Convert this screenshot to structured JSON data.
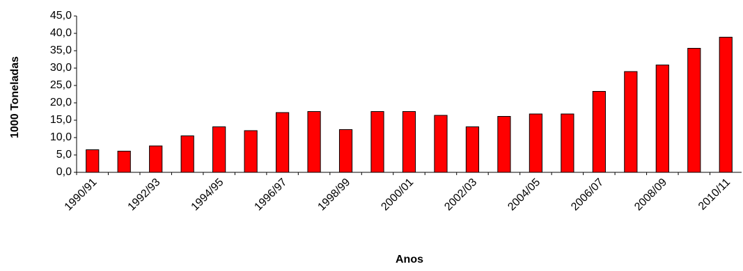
{
  "chart_data": {
    "type": "bar",
    "y_label": "1000 Toneladas",
    "x_label": "Anos",
    "categories": [
      "1990/91",
      null,
      "1992/93",
      null,
      "1994/95",
      null,
      "1996/97",
      null,
      "1998/99",
      null,
      "2000/01",
      null,
      "2002/03",
      null,
      "2004/05",
      null,
      "2006/07",
      null,
      "2008/09",
      null,
      "2010/11"
    ],
    "values": [
      6.5,
      6.1,
      7.6,
      10.5,
      13.1,
      12.0,
      17.2,
      17.5,
      12.3,
      17.5,
      17.5,
      16.4,
      13.1,
      16.1,
      16.8,
      16.8,
      23.3,
      29.0,
      30.9,
      35.7,
      38.9
    ],
    "color": "#ff0000",
    "ylim": [
      0,
      45
    ],
    "yticks": [
      {
        "value": 0,
        "label": "0,0"
      },
      {
        "value": 5,
        "label": "5,0"
      },
      {
        "value": 10,
        "label": "10,0"
      },
      {
        "value": 15,
        "label": "15,0"
      },
      {
        "value": 20,
        "label": "20,0"
      },
      {
        "value": 25,
        "label": "25,0"
      },
      {
        "value": 30,
        "label": "30,0"
      },
      {
        "value": 35,
        "label": "35,0"
      },
      {
        "value": 40,
        "label": "40,0"
      },
      {
        "value": 45,
        "label": "45,0"
      }
    ],
    "grid": false
  }
}
